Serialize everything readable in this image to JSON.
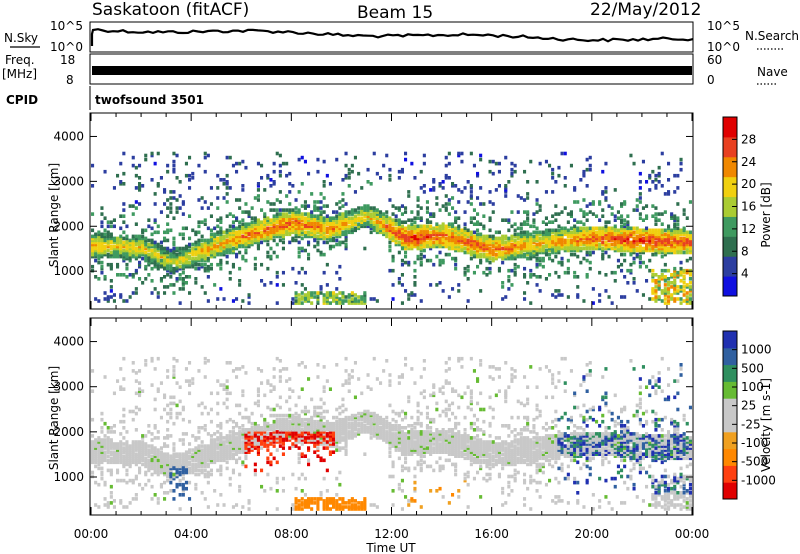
{
  "header": {
    "station": "Saskatoon (fitACF)",
    "beam": "Beam 15",
    "date": "22/May/2012"
  },
  "top_panels": {
    "nsky_label": "N.Sky",
    "nsky_ticks": [
      "10^5",
      "10^0"
    ],
    "nsearch_ticks": [
      "10^5",
      "10^0"
    ],
    "nsearch_label": "N.Search",
    "freq_label": "Freq.",
    "freq_unit": "[MHz]",
    "freq_ticks": [
      "18",
      "8"
    ],
    "nave_ticks": [
      "60",
      "0"
    ],
    "nave_label": "Nave",
    "cpid_label": "CPID",
    "cpid_value": "twofsound 3501"
  },
  "colors": {
    "power_scale": [
      "#1010e0",
      "#2c3ea0",
      "#2f6f4f",
      "#3f9a60",
      "#aacc33",
      "#f0d010",
      "#f08800",
      "#e84020",
      "#e00000"
    ],
    "velocity_scale": [
      "#e00000",
      "#ff4010",
      "#ff8800",
      "#f0a020",
      "#c8c8c8",
      "#c8c8c8",
      "#66bb33",
      "#2f8f5f",
      "#3060a0",
      "#2030b0"
    ]
  },
  "chart_data": [
    {
      "type": "heatmap",
      "title": "Power",
      "ylabel": "Slant Range [km]",
      "xlabel": "Time UT",
      "x_ticks": [
        "00:00",
        "04:00",
        "08:00",
        "12:00",
        "16:00",
        "20:00",
        "00:00"
      ],
      "xlim_hours": [
        0,
        24
      ],
      "y_ticks": [
        "1000",
        "2000",
        "3000",
        "4000"
      ],
      "ylim": [
        180,
        4500
      ],
      "colorbar_label": "Power [dB]",
      "colorbar_ticks": [
        "28",
        "24",
        "20",
        "16",
        "12",
        "8",
        "4"
      ],
      "colorbar_range": [
        0,
        32
      ],
      "main_echo_band": {
        "hours": [
          0,
          2,
          3.2,
          4.5,
          6,
          8,
          9.5,
          11,
          12.5,
          14,
          16,
          18,
          20,
          22,
          24
        ],
        "range_km": [
          1550,
          1500,
          1150,
          1450,
          1750,
          2050,
          1900,
          2200,
          1700,
          1750,
          1450,
          1600,
          1700,
          1650,
          1600
        ],
        "power_db": [
          22,
          20,
          18,
          22,
          24,
          26,
          24,
          20,
          28,
          26,
          26,
          22,
          26,
          28,
          26
        ]
      }
    },
    {
      "type": "heatmap",
      "title": "Velocity",
      "ylabel": "Slant Range [km]",
      "xlabel": "Time UT",
      "x_ticks": [
        "00:00",
        "04:00",
        "08:00",
        "12:00",
        "16:00",
        "20:00",
        "00:00"
      ],
      "xlim_hours": [
        0,
        24
      ],
      "y_ticks": [
        "1000",
        "2000",
        "3000",
        "4000"
      ],
      "ylim": [
        180,
        4500
      ],
      "colorbar_label": "Velocity [m s-1]",
      "colorbar_ticks": [
        "1000",
        "500",
        "100",
        "25",
        "-25",
        "-100",
        "-500",
        "-1000"
      ],
      "colorbar_range": [
        -1200,
        1200
      ]
    }
  ]
}
